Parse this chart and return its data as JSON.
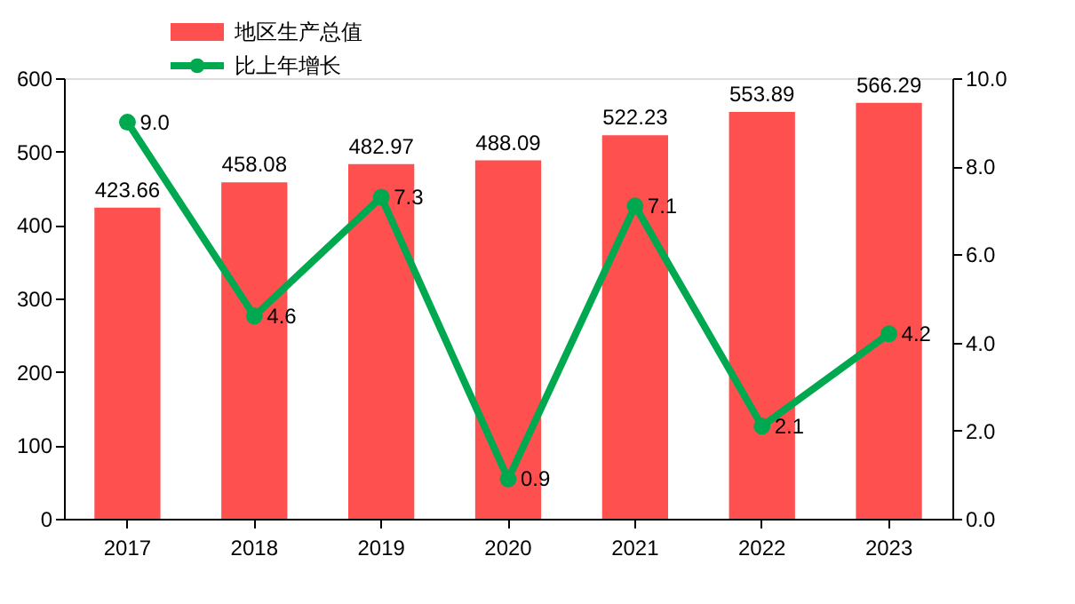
{
  "chart_data": {
    "type": "bar",
    "categories": [
      "2017",
      "2018",
      "2019",
      "2020",
      "2021",
      "2022",
      "2023"
    ],
    "series": [
      {
        "name": "地区生产总值",
        "color": "#ff5050",
        "values": [
          423.66,
          458.08,
          482.97,
          488.09,
          522.23,
          553.89,
          566.29
        ]
      },
      {
        "name": "比上年增长",
        "type": "line",
        "axis": "y2",
        "color": "#00a84f",
        "marker": "circle",
        "values": [
          9.0,
          4.6,
          7.3,
          0.9,
          7.1,
          2.1,
          4.2
        ],
        "value_labels": [
          "9.0",
          "4.6",
          "7.3",
          "0.9",
          "7.1",
          "2.1",
          "4.2"
        ]
      }
    ],
    "ylim": [
      0,
      600
    ],
    "yticks": [
      0,
      100,
      200,
      300,
      400,
      500,
      600
    ],
    "y2lim": [
      0,
      10
    ],
    "y2ticks": [
      {
        "value": 0,
        "label": "0.0"
      },
      {
        "value": 2,
        "label": "2.0"
      },
      {
        "value": 4,
        "label": "4.0"
      },
      {
        "value": 6,
        "label": "6.0"
      },
      {
        "value": 8,
        "label": "8.0"
      },
      {
        "value": 10,
        "label": "10.0"
      }
    ],
    "data_labels": true,
    "grid": false,
    "legend": "top left"
  }
}
